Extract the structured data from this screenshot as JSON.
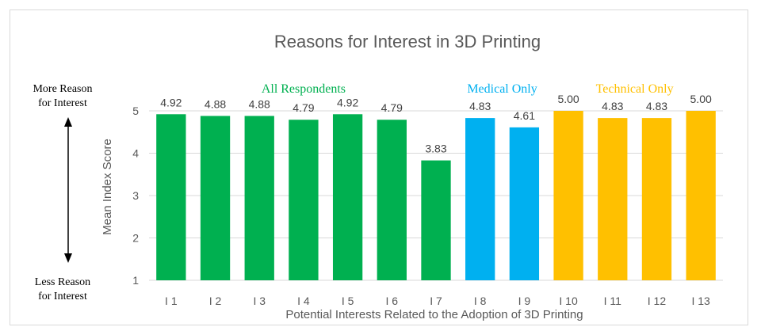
{
  "chart_data": {
    "type": "bar",
    "title": "Reasons for Interest in 3D Printing",
    "xlabel": "Potential Interests Related to the Adoption of 3D Printing",
    "ylabel": "Mean Index Score",
    "ylim": [
      1,
      5
    ],
    "yticks": [
      1,
      2,
      3,
      4,
      5
    ],
    "grid": true,
    "categories": [
      "I 1",
      "I 2",
      "I 3",
      "I 4",
      "I 5",
      "I 6",
      "I 7",
      "I 8",
      "I 9",
      "I 10",
      "I 11",
      "I 12",
      "I 13"
    ],
    "values": [
      4.92,
      4.88,
      4.88,
      4.79,
      4.92,
      4.79,
      3.83,
      4.83,
      4.61,
      5.0,
      4.83,
      4.83,
      5.0
    ],
    "value_labels": [
      "4.92",
      "4.88",
      "4.88",
      "4.79",
      "4.92",
      "4.79",
      "3.83",
      "4.83",
      "4.61",
      "5.00",
      "4.83",
      "4.83",
      "5.00"
    ],
    "groups": [
      {
        "name": "All Respondents",
        "start": 0,
        "end": 6,
        "color": "#00b050"
      },
      {
        "name": "Medical Only",
        "start": 7,
        "end": 8,
        "color": "#00b0f0"
      },
      {
        "name": "Technical Only",
        "start": 9,
        "end": 12,
        "color": "#ffc000"
      }
    ]
  },
  "annotations": {
    "top_note": "More Reason\nfor Interest",
    "bottom_note": "Less Reason\nfor Interest"
  }
}
